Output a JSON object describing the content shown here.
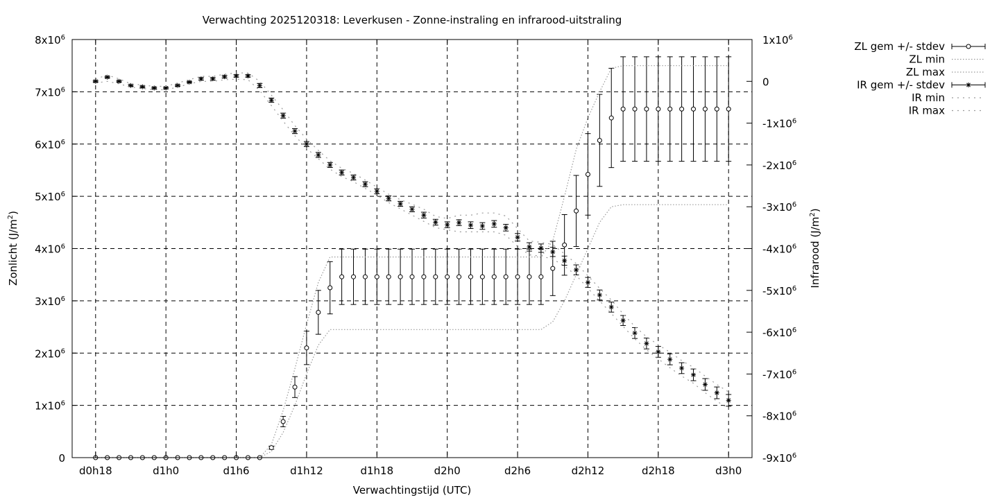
{
  "chart_data": {
    "type": "line",
    "title": "Verwachting 2025120318: Leverkusen - Zonne-instraling en infrarood-uitstraling",
    "xlabel": "Verwachtingstijd (UTC)",
    "ylabel_left": {
      "base": "Zonlicht (J/m",
      "sup": "2",
      "tail": ")"
    },
    "ylabel_right": {
      "base": "Infrarood (J/m",
      "sup": "2",
      "tail": ")"
    },
    "grid": true,
    "legend_position": "top-right outside plot",
    "x_ticks": [
      {
        "hour": 0,
        "label": "d0h18"
      },
      {
        "hour": 6,
        "label": "d1h0"
      },
      {
        "hour": 12,
        "label": "d1h6"
      },
      {
        "hour": 18,
        "label": "d1h12"
      },
      {
        "hour": 24,
        "label": "d1h18"
      },
      {
        "hour": 30,
        "label": "d2h0"
      },
      {
        "hour": 36,
        "label": "d2h6"
      },
      {
        "hour": 42,
        "label": "d2h12"
      },
      {
        "hour": 48,
        "label": "d2h18"
      },
      {
        "hour": 54,
        "label": "d3h0"
      }
    ],
    "xlim_hours_after_d0h18": [
      -2,
      56
    ],
    "y_left": {
      "ylim": [
        0,
        8000000
      ],
      "ticks": [
        {
          "v": 0,
          "base": "0",
          "sup": ""
        },
        {
          "v": 1000000,
          "base": "1x10",
          "sup": "6"
        },
        {
          "v": 2000000,
          "base": "2x10",
          "sup": "6"
        },
        {
          "v": 3000000,
          "base": "3x10",
          "sup": "6"
        },
        {
          "v": 4000000,
          "base": "4x10",
          "sup": "6"
        },
        {
          "v": 5000000,
          "base": "5x10",
          "sup": "6"
        },
        {
          "v": 6000000,
          "base": "6x10",
          "sup": "6"
        },
        {
          "v": 7000000,
          "base": "7x10",
          "sup": "6"
        },
        {
          "v": 8000000,
          "base": "8x10",
          "sup": "6"
        }
      ]
    },
    "y_right": {
      "ylim": [
        -9000000,
        1000000
      ],
      "ticks": [
        {
          "v": 1000000,
          "base": "1x10",
          "sup": "6"
        },
        {
          "v": 0,
          "base": "0",
          "sup": ""
        },
        {
          "v": -1000000,
          "base": "-1x10",
          "sup": "6"
        },
        {
          "v": -2000000,
          "base": "-2x10",
          "sup": "6"
        },
        {
          "v": -3000000,
          "base": "-3x10",
          "sup": "6"
        },
        {
          "v": -4000000,
          "base": "-4x10",
          "sup": "6"
        },
        {
          "v": -5000000,
          "base": "-5x10",
          "sup": "6"
        },
        {
          "v": -6000000,
          "base": "-6x10",
          "sup": "6"
        },
        {
          "v": -7000000,
          "base": "-7x10",
          "sup": "6"
        },
        {
          "v": -8000000,
          "base": "-8x10",
          "sup": "6"
        },
        {
          "v": -9000000,
          "base": "-9x10",
          "sup": "6"
        }
      ]
    },
    "x_hours": [
      0,
      1,
      2,
      3,
      4,
      5,
      6,
      7,
      8,
      9,
      10,
      11,
      12,
      13,
      14,
      15,
      16,
      17,
      18,
      19,
      20,
      21,
      22,
      23,
      24,
      25,
      26,
      27,
      28,
      29,
      30,
      31,
      32,
      33,
      34,
      35,
      36,
      37,
      38,
      39,
      40,
      41,
      42,
      43,
      44,
      45,
      46,
      47,
      48,
      49,
      50,
      51,
      52,
      53,
      54
    ],
    "series": [
      {
        "name": "ZL gem +/- stdev",
        "axis": "left",
        "marker": "circle",
        "mean": [
          0,
          0,
          0,
          0,
          0,
          0,
          0,
          0,
          0,
          0,
          0,
          0,
          0,
          0,
          0,
          190000,
          690000,
          1350000,
          2100000,
          2780000,
          3250000,
          3460000,
          3460000,
          3460000,
          3460000,
          3460000,
          3460000,
          3460000,
          3460000,
          3460000,
          3460000,
          3460000,
          3460000,
          3460000,
          3460000,
          3460000,
          3460000,
          3460000,
          3460000,
          3620000,
          4070000,
          4720000,
          5420000,
          6070000,
          6500000,
          6670000,
          6670000,
          6670000,
          6670000,
          6670000,
          6670000,
          6670000,
          6670000,
          6670000,
          6670000
        ],
        "stdev": [
          0,
          0,
          0,
          0,
          0,
          0,
          0,
          0,
          0,
          0,
          0,
          0,
          0,
          0,
          0,
          30000,
          100000,
          200000,
          320000,
          420000,
          500000,
          530000,
          530000,
          530000,
          530000,
          530000,
          530000,
          530000,
          530000,
          530000,
          530000,
          530000,
          530000,
          530000,
          530000,
          530000,
          530000,
          530000,
          530000,
          520000,
          580000,
          680000,
          780000,
          880000,
          950000,
          1000000,
          1000000,
          1000000,
          1000000,
          1000000,
          1000000,
          1000000,
          1000000,
          1000000,
          1000000
        ]
      },
      {
        "name": "ZL min",
        "axis": "left",
        "style": "dotted",
        "values": [
          0,
          0,
          0,
          0,
          0,
          0,
          0,
          0,
          0,
          0,
          0,
          0,
          0,
          0,
          0,
          120000,
          480000,
          1000000,
          1600000,
          2150000,
          2450000,
          2450000,
          2450000,
          2450000,
          2450000,
          2450000,
          2450000,
          2450000,
          2450000,
          2450000,
          2450000,
          2450000,
          2450000,
          2450000,
          2450000,
          2450000,
          2450000,
          2450000,
          2450000,
          2600000,
          3000000,
          3500000,
          4000000,
          4500000,
          4800000,
          4840000,
          4840000,
          4840000,
          4840000,
          4840000,
          4840000,
          4840000,
          4840000,
          4840000,
          4840000
        ]
      },
      {
        "name": "ZL max",
        "axis": "left",
        "style": "dotted",
        "values": [
          0,
          0,
          0,
          0,
          0,
          0,
          0,
          0,
          0,
          0,
          0,
          0,
          0,
          0,
          0,
          250000,
          900000,
          1700000,
          2550000,
          3350000,
          3840000,
          3840000,
          3840000,
          3840000,
          3840000,
          3840000,
          3840000,
          3840000,
          3840000,
          3840000,
          3840000,
          3840000,
          3840000,
          3840000,
          3840000,
          3840000,
          3840000,
          3840000,
          3840000,
          4150000,
          5000000,
          5900000,
          6500000,
          7000000,
          7450000,
          7500000,
          7500000,
          7500000,
          7500000,
          7500000,
          7500000,
          7500000,
          7500000,
          7500000,
          7500000
        ]
      },
      {
        "name": "IR gem +/- stdev",
        "axis": "right",
        "marker": "star",
        "mean": [
          0,
          100000,
          0,
          -100000,
          -130000,
          -160000,
          -160000,
          -100000,
          -20000,
          60000,
          60000,
          110000,
          130000,
          130000,
          -100000,
          -450000,
          -820000,
          -1190000,
          -1500000,
          -1760000,
          -2000000,
          -2180000,
          -2300000,
          -2460000,
          -2630000,
          -2800000,
          -2930000,
          -3060000,
          -3200000,
          -3370000,
          -3430000,
          -3380000,
          -3440000,
          -3460000,
          -3410000,
          -3500000,
          -3730000,
          -3960000,
          -3990000,
          -4080000,
          -4290000,
          -4510000,
          -4810000,
          -5110000,
          -5400000,
          -5720000,
          -6020000,
          -6270000,
          -6470000,
          -6650000,
          -6860000,
          -7020000,
          -7250000,
          -7450000,
          -7630000
        ],
        "stdev": [
          20000,
          20000,
          20000,
          20000,
          20000,
          20000,
          20000,
          20000,
          20000,
          30000,
          30000,
          30000,
          30000,
          30000,
          50000,
          50000,
          60000,
          60000,
          60000,
          60000,
          60000,
          60000,
          60000,
          60000,
          60000,
          60000,
          60000,
          60000,
          70000,
          70000,
          70000,
          70000,
          80000,
          80000,
          80000,
          80000,
          90000,
          100000,
          100000,
          110000,
          110000,
          120000,
          120000,
          120000,
          120000,
          120000,
          130000,
          130000,
          130000,
          130000,
          130000,
          140000,
          140000,
          140000,
          140000
        ]
      },
      {
        "name": "IR min",
        "axis": "right",
        "style": "dotted",
        "values": [
          -40000,
          0,
          -60000,
          -140000,
          -170000,
          -200000,
          -200000,
          -140000,
          -60000,
          0,
          0,
          40000,
          50000,
          40000,
          -220000,
          -580000,
          -950000,
          -1300000,
          -1600000,
          -1850000,
          -2100000,
          -2280000,
          -2400000,
          -2560000,
          -2720000,
          -2900000,
          -3050000,
          -3200000,
          -3350000,
          -3500000,
          -3550000,
          -3600000,
          -3600000,
          -3600000,
          -3600000,
          -3680000,
          -3950000,
          -4150000,
          -4180000,
          -4250000,
          -4420000,
          -4640000,
          -4950000,
          -5250000,
          -5550000,
          -5860000,
          -6160000,
          -6420000,
          -6640000,
          -6850000,
          -7050000,
          -7220000,
          -7450000,
          -7650000,
          -7830000
        ]
      },
      {
        "name": "IR max",
        "axis": "right",
        "style": "dotted",
        "values": [
          60000,
          150000,
          60000,
          -60000,
          -90000,
          -120000,
          -120000,
          -40000,
          40000,
          120000,
          120000,
          170000,
          200000,
          200000,
          0,
          -330000,
          -680000,
          -1060000,
          -1380000,
          -1650000,
          -1900000,
          -2080000,
          -2200000,
          -2360000,
          -2530000,
          -2700000,
          -2830000,
          -2940000,
          -3060000,
          -3230000,
          -3280000,
          -3200000,
          -3200000,
          -3150000,
          -3150000,
          -3220000,
          -3520000,
          -3820000,
          -3850000,
          -3900000,
          -4130000,
          -4360000,
          -4650000,
          -4950000,
          -5230000,
          -5560000,
          -5860000,
          -6110000,
          -6300000,
          -6480000,
          -6680000,
          -6840000,
          -7050000,
          -7250000,
          -7430000
        ]
      }
    ]
  }
}
